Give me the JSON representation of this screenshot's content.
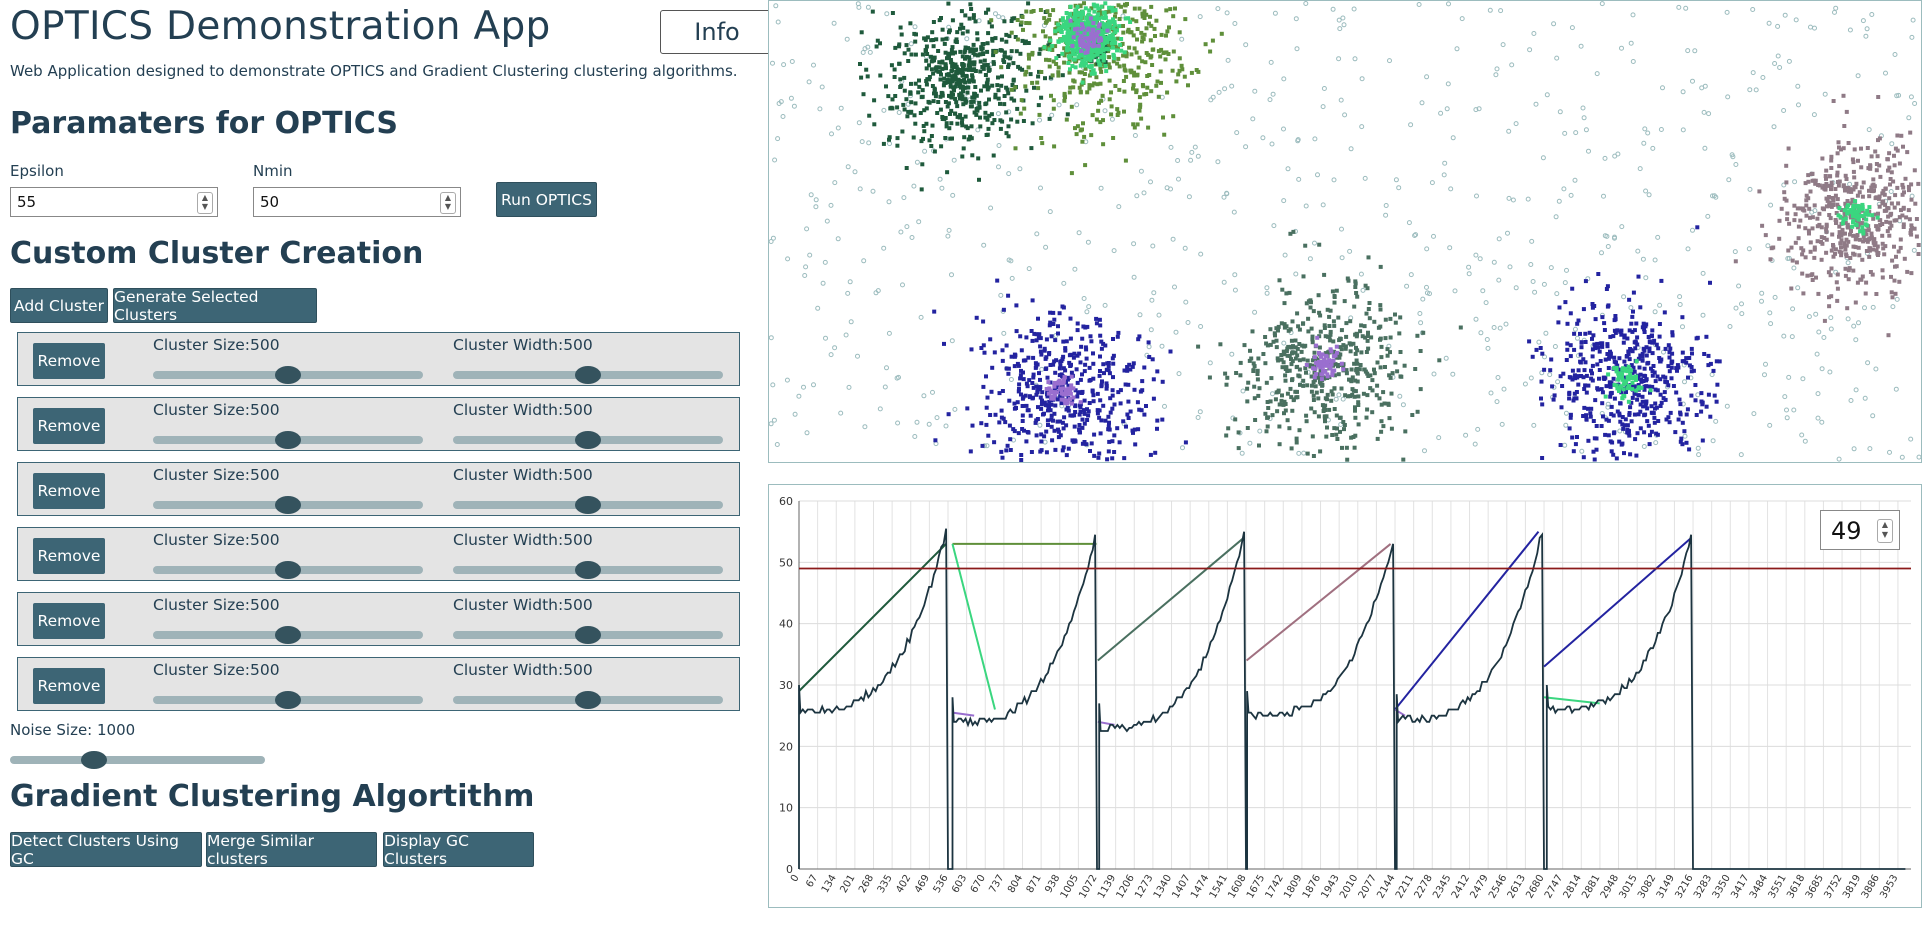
{
  "app": {
    "title": "OPTICS Demonstration App",
    "info_label": "Info",
    "subtitle": "Web Application designed to demonstrate OPTICS and Gradient Clustering clustering algorithms."
  },
  "optics": {
    "heading": "Paramaters for OPTICS",
    "epsilon_label": "Epsilon",
    "epsilon_value": "55",
    "nmin_label": "Nmin",
    "nmin_value": "50",
    "run_label": "Run OPTICS"
  },
  "custom": {
    "heading": "Custom Cluster Creation",
    "add_label": "Add Cluster",
    "generate_label": "Generate Selected Clusters",
    "remove_label": "Remove",
    "clusters": [
      {
        "size_label": "Cluster Size:500",
        "width_label": "Cluster Width:500",
        "size_level": 0.5,
        "width_level": 0.5
      },
      {
        "size_label": "Cluster Size:500",
        "width_label": "Cluster Width:500",
        "size_level": 0.5,
        "width_level": 0.5
      },
      {
        "size_label": "Cluster Size:500",
        "width_label": "Cluster Width:500",
        "size_level": 0.5,
        "width_level": 0.5
      },
      {
        "size_label": "Cluster Size:500",
        "width_label": "Cluster Width:500",
        "size_level": 0.5,
        "width_level": 0.5
      },
      {
        "size_label": "Cluster Size:500",
        "width_label": "Cluster Width:500",
        "size_level": 0.5,
        "width_level": 0.5
      },
      {
        "size_label": "Cluster Size:500",
        "width_label": "Cluster Width:500",
        "size_level": 0.5,
        "width_level": 0.5
      }
    ],
    "noise_label": "Noise Size: 1000",
    "noise_level": 0.33
  },
  "gradient": {
    "heading": "Gradient Clustering Algortithm",
    "detect_label": "Detect Clusters Using GC",
    "merge_label": "Merge Similar clusters",
    "display_label": "Display GC Clusters"
  },
  "threshold_value": "49",
  "colors": {
    "accent": "#3d6575",
    "threshold_line": "#8b1a1a",
    "reachability_line": "#1c3440",
    "noise_point": "#9cbcbe",
    "cluster_colors": [
      "#1f5a3c",
      "#5f8f3a",
      "#3ad67f",
      "#9a6fcf",
      "#2323a0",
      "#4a7060",
      "#8f7a86"
    ]
  },
  "chart_data": {
    "type": "line",
    "title": "",
    "xlabel": "",
    "ylabel": "",
    "ylim": [
      0,
      60
    ],
    "yticks": [
      0,
      10,
      20,
      30,
      40,
      50,
      60
    ],
    "xticks": [
      "0",
      "67",
      "134",
      "201",
      "268",
      "335",
      "402",
      "469",
      "536",
      "603",
      "670",
      "737",
      "804",
      "871",
      "938",
      "1005",
      "1072",
      "1139",
      "1206",
      "1273",
      "1340",
      "1407",
      "1474",
      "1541",
      "1608",
      "1675",
      "1742",
      "1809",
      "1876",
      "1943",
      "2010",
      "2077",
      "2144",
      "2211",
      "2278",
      "2345",
      "2412",
      "2479",
      "2546",
      "2613",
      "2680",
      "2747",
      "2814",
      "2881",
      "2948",
      "3015",
      "3082",
      "3149",
      "3216",
      "3283",
      "3350",
      "3417",
      "3484",
      "3551",
      "3618",
      "3685",
      "3752",
      "3819",
      "3886",
      "3953"
    ],
    "threshold": 49,
    "grid": true,
    "xmax": 4000,
    "cluster_segments": [
      {
        "x_start": 0,
        "x_end": 529,
        "y_start": 29,
        "y_end": 53
      },
      {
        "x_start": 552,
        "x_end": 1070,
        "y_start": 53,
        "y_end": 53
      },
      {
        "x_start": 552,
        "x_end": 705,
        "y_start": 53,
        "y_end": 26
      },
      {
        "x_start": 552,
        "x_end": 630,
        "y_start": 25.5,
        "y_end": 25
      },
      {
        "x_start": 1075,
        "x_end": 1600,
        "y_start": 34,
        "y_end": 54
      },
      {
        "x_start": 1075,
        "x_end": 1135,
        "y_start": 24,
        "y_end": 23.5
      },
      {
        "x_start": 1610,
        "x_end": 2128,
        "y_start": 34,
        "y_end": 53
      },
      {
        "x_start": 2144,
        "x_end": 2660,
        "y_start": 26,
        "y_end": 55
      },
      {
        "x_start": 2144,
        "x_end": 2180,
        "y_start": 26,
        "y_end": 25
      },
      {
        "x_start": 2680,
        "x_end": 3210,
        "y_start": 33,
        "y_end": 54
      },
      {
        "x_start": 2680,
        "x_end": 2880,
        "y_start": 28,
        "y_end": 27
      }
    ],
    "reachability_valleys": [
      {
        "x_start": 0,
        "x_end": 536,
        "floor": 26,
        "peak": 55
      },
      {
        "x_start": 552,
        "x_end": 1072,
        "floor": 24,
        "peak": 54
      },
      {
        "x_start": 1080,
        "x_end": 1608,
        "floor": 23,
        "peak": 55
      },
      {
        "x_start": 1612,
        "x_end": 2144,
        "floor": 25,
        "peak": 53
      },
      {
        "x_start": 2150,
        "x_end": 2680,
        "floor": 24.5,
        "peak": 55
      },
      {
        "x_start": 2690,
        "x_end": 3216,
        "floor": 26,
        "peak": 54
      }
    ]
  }
}
